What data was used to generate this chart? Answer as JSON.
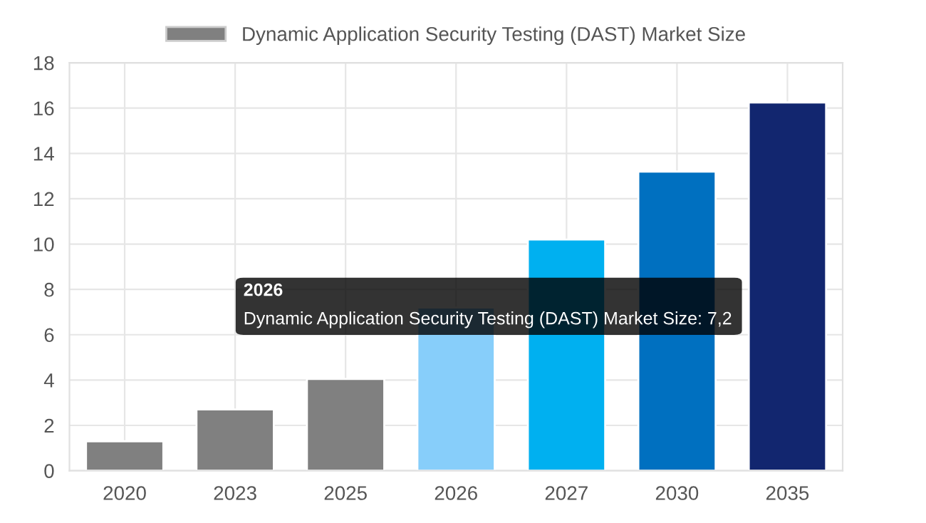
{
  "chart_data": {
    "type": "bar",
    "categories": [
      "2020",
      "2023",
      "2025",
      "2026",
      "2027",
      "2030",
      "2035"
    ],
    "series": [
      {
        "name": "Dynamic Application Security Testing (DAST) Market Size",
        "values": [
          1.3,
          2.7,
          4.05,
          7.2,
          10.2,
          13.2,
          16.25
        ]
      }
    ],
    "colors": [
      "#808080",
      "#808080",
      "#808080",
      "#87cefa",
      "#00b0f0",
      "#0070c0",
      "#12266f"
    ],
    "ylim": [
      0,
      18
    ],
    "yticks": [
      0,
      2,
      4,
      6,
      8,
      10,
      12,
      14,
      16,
      18
    ],
    "grid": true,
    "legend": "top",
    "annotations": [
      "2026",
      "Dynamic Application Security Testing (DAST) Market Size: 7,2"
    ]
  }
}
